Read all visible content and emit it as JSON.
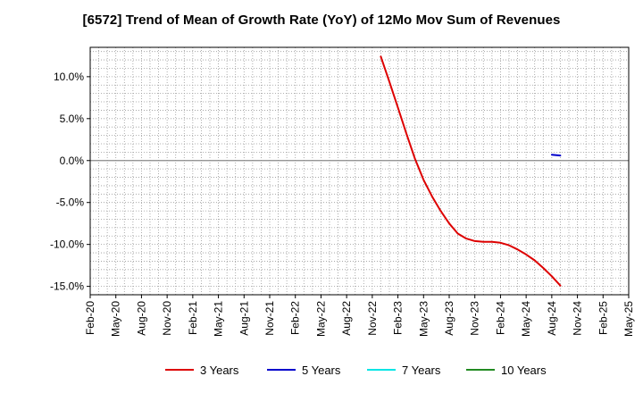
{
  "chart_data": {
    "type": "line",
    "title": "[6572]  Trend of Mean of Growth Rate (YoY) of 12Mo Mov Sum of Revenues",
    "xlabel": "",
    "ylabel": "",
    "ylim": [
      -16.0,
      13.5
    ],
    "y_ticks": [
      10.0,
      5.0,
      0.0,
      -5.0,
      -10.0,
      -15.0
    ],
    "y_tick_labels": [
      "10.0%",
      "5.0%",
      "0.0%",
      "-5.0%",
      "-10.0%",
      "-15.0%"
    ],
    "x_tick_labels": [
      "Feb-20",
      "May-20",
      "Aug-20",
      "Nov-20",
      "Feb-21",
      "May-21",
      "Aug-21",
      "Nov-21",
      "Feb-22",
      "May-22",
      "Aug-22",
      "Nov-22",
      "Feb-23",
      "May-23",
      "Aug-23",
      "Nov-23",
      "Feb-24",
      "May-24",
      "Aug-24",
      "Nov-24",
      "Feb-25",
      "May-25"
    ],
    "x_range_months": [
      0,
      63
    ],
    "grid": true,
    "legend_position": "bottom",
    "series": [
      {
        "name": "3 Years",
        "color": "#dd0000",
        "points": [
          [
            34,
            12.4
          ],
          [
            35,
            9.4
          ],
          [
            36,
            6.3
          ],
          [
            37,
            3.2
          ],
          [
            38,
            0.2
          ],
          [
            39,
            -2.3
          ],
          [
            40,
            -4.3
          ],
          [
            41,
            -6.0
          ],
          [
            42,
            -7.5
          ],
          [
            43,
            -8.7
          ],
          [
            44,
            -9.3
          ],
          [
            45,
            -9.6
          ],
          [
            46,
            -9.7
          ],
          [
            47,
            -9.7
          ],
          [
            48,
            -9.8
          ],
          [
            49,
            -10.1
          ],
          [
            50,
            -10.6
          ],
          [
            51,
            -11.2
          ],
          [
            52,
            -11.9
          ],
          [
            53,
            -12.8
          ],
          [
            54,
            -13.8
          ],
          [
            55,
            -14.9
          ]
        ]
      },
      {
        "name": "5 Years",
        "color": "#0000cc",
        "points": [
          [
            54,
            0.7
          ],
          [
            55,
            0.6
          ]
        ]
      },
      {
        "name": "7 Years",
        "color": "#00e5e5",
        "points": []
      },
      {
        "name": "10 Years",
        "color": "#228b22",
        "points": []
      }
    ]
  }
}
